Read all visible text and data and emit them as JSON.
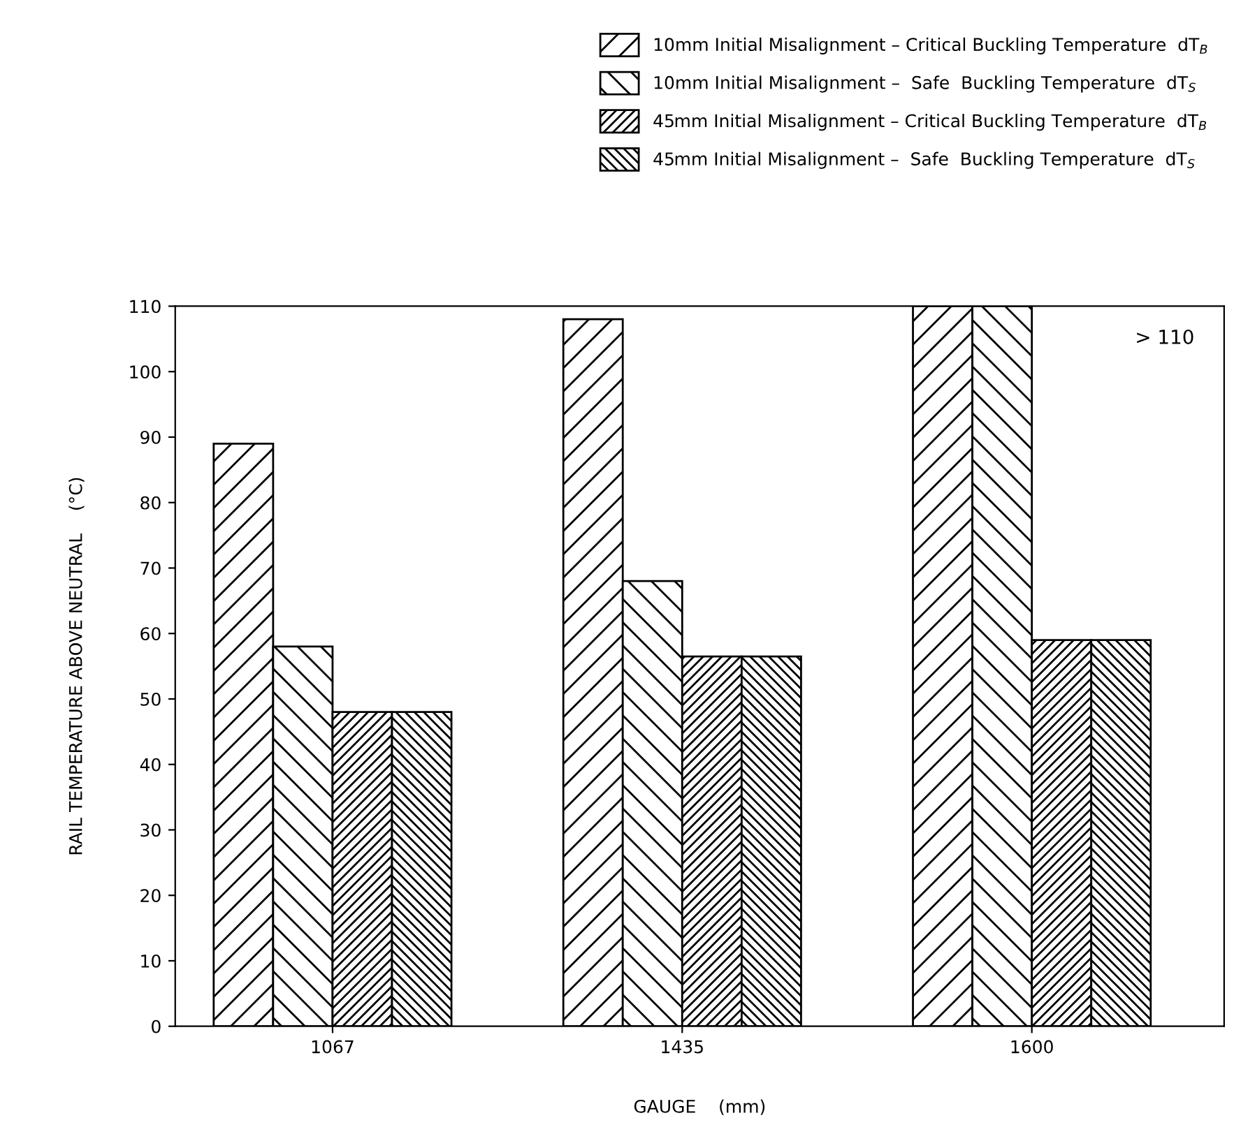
{
  "chart_data": {
    "type": "bar",
    "xlabel": "GAUGE    (mm)",
    "ylabel": "RAIL TEMPERATURE ABOVE NEUTRAL    (°C)",
    "categories": [
      "1067",
      "1435",
      "1600"
    ],
    "series": [
      {
        "name": "10mm Initial Misalignment – Critical Buckling Temperature  dT$_{B}$",
        "color": "#000000",
        "values": [
          89,
          108,
          110
        ]
      },
      {
        "name": "10mm Initial Misalignment –  Safe  Buckling Temperature  dT$_{S}$",
        "color": "#000000",
        "values": [
          58,
          68,
          110
        ]
      },
      {
        "name": "45mm Initial Misalignment – Critical Buckling Temperature  dT$_{B}$",
        "color": "#000000",
        "values": [
          48,
          56.5,
          59
        ]
      },
      {
        "name": "45mm Initial Misalignment –  Safe  Buckling Temperature  dT$_{S}$",
        "color": "#000000",
        "values": [
          48,
          56.5,
          59
        ]
      }
    ],
    "ylim": [
      0,
      110
    ],
    "yticks": [
      0,
      10,
      20,
      30,
      40,
      50,
      60,
      70,
      80,
      90,
      100,
      110
    ],
    "annotations": [
      "> 110"
    ],
    "grid": false,
    "legend": "top right"
  }
}
